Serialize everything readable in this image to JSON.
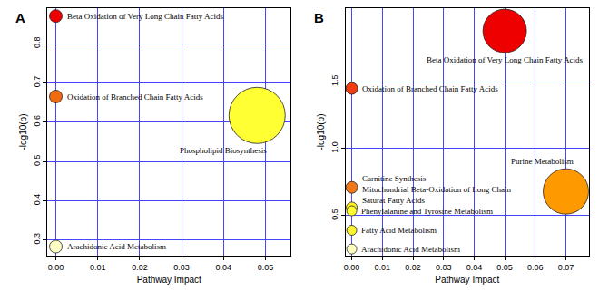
{
  "chart_data": [
    {
      "type": "scatter",
      "title": "A",
      "xlabel": "Pathway Impact",
      "ylabel": "-log10(p)",
      "labels": [
        "Beta Oxidation of Very Long Chain Fatty Acids",
        "Oxidation of Branched Chain Fatty Acids",
        "Phospholipid Biosynthesis",
        "Arachidonic Acid Metabolism"
      ],
      "x": [
        0,
        0,
        0.048,
        0
      ],
      "values": [
        0.87,
        0.665,
        0.617,
        0.283
      ],
      "sizes": [
        14,
        14,
        62,
        14
      ],
      "colors": [
        "#ee0000",
        "#f06a10",
        "#ffff33",
        "#ffffc4"
      ],
      "xlim": [
        -0.002,
        0.056
      ],
      "ylim": [
        0.26,
        0.89
      ],
      "xticks": [
        {
          "value": 0,
          "label": "0.00"
        },
        {
          "value": 0.01,
          "label": "0.01"
        },
        {
          "value": 0.02,
          "label": "0.02"
        },
        {
          "value": 0.03,
          "label": "0.03"
        },
        {
          "value": 0.04,
          "label": "0.04"
        },
        {
          "value": 0.05,
          "label": "0.05"
        }
      ],
      "yticks": [
        0.3,
        0.4,
        0.5,
        0.6,
        0.7,
        0.8
      ],
      "grid": true
    },
    {
      "type": "scatter",
      "title": "B",
      "xlabel": "Pathway Impact",
      "ylabel": "-log10(p)",
      "labels": [
        "Beta Oxidation of Very Long Chain Fatty Acids",
        "Oxidation of Branched Chain Fatty Acids",
        "Carnitine Synthesis",
        "Mitochondrial Beta-Oxidation of Long Chain Saturat Fatty Acids",
        "Phenylalanine and Tyrosine Metabolism",
        "Fatty Acid Metabolism",
        "Arachidonic Acid Metabolism",
        "Purine Metabolism"
      ],
      "x": [
        0.05,
        0,
        0,
        0,
        0,
        0,
        0,
        0.07
      ],
      "values": [
        1.88,
        1.45,
        0.71,
        0.56,
        0.535,
        0.39,
        0.25,
        0.68
      ],
      "sizes": [
        48,
        13,
        13,
        12,
        11,
        11,
        11,
        50
      ],
      "colors": [
        "#ee0000",
        "#f03c10",
        "#f07818",
        "#ffee22",
        "#ffff30",
        "#fff230",
        "#ffffc4",
        "#ff9900"
      ],
      "xlim": [
        -0.002,
        0.0775
      ],
      "ylim": [
        0.2,
        2.05
      ],
      "xticks": [
        {
          "value": 0,
          "label": "0.00"
        },
        {
          "value": 0.01,
          "label": "0.01"
        },
        {
          "value": 0.02,
          "label": "0.02"
        },
        {
          "value": 0.03,
          "label": "0.03"
        },
        {
          "value": 0.04,
          "label": "0.04"
        },
        {
          "value": 0.05,
          "label": "0.05"
        },
        {
          "value": 0.06,
          "label": "0.06"
        },
        {
          "value": 0.07,
          "label": "0.07"
        }
      ],
      "yticks": [
        0.5,
        {
          "value": 1,
          "label": "1.0"
        },
        1.5
      ],
      "grid": true
    }
  ]
}
